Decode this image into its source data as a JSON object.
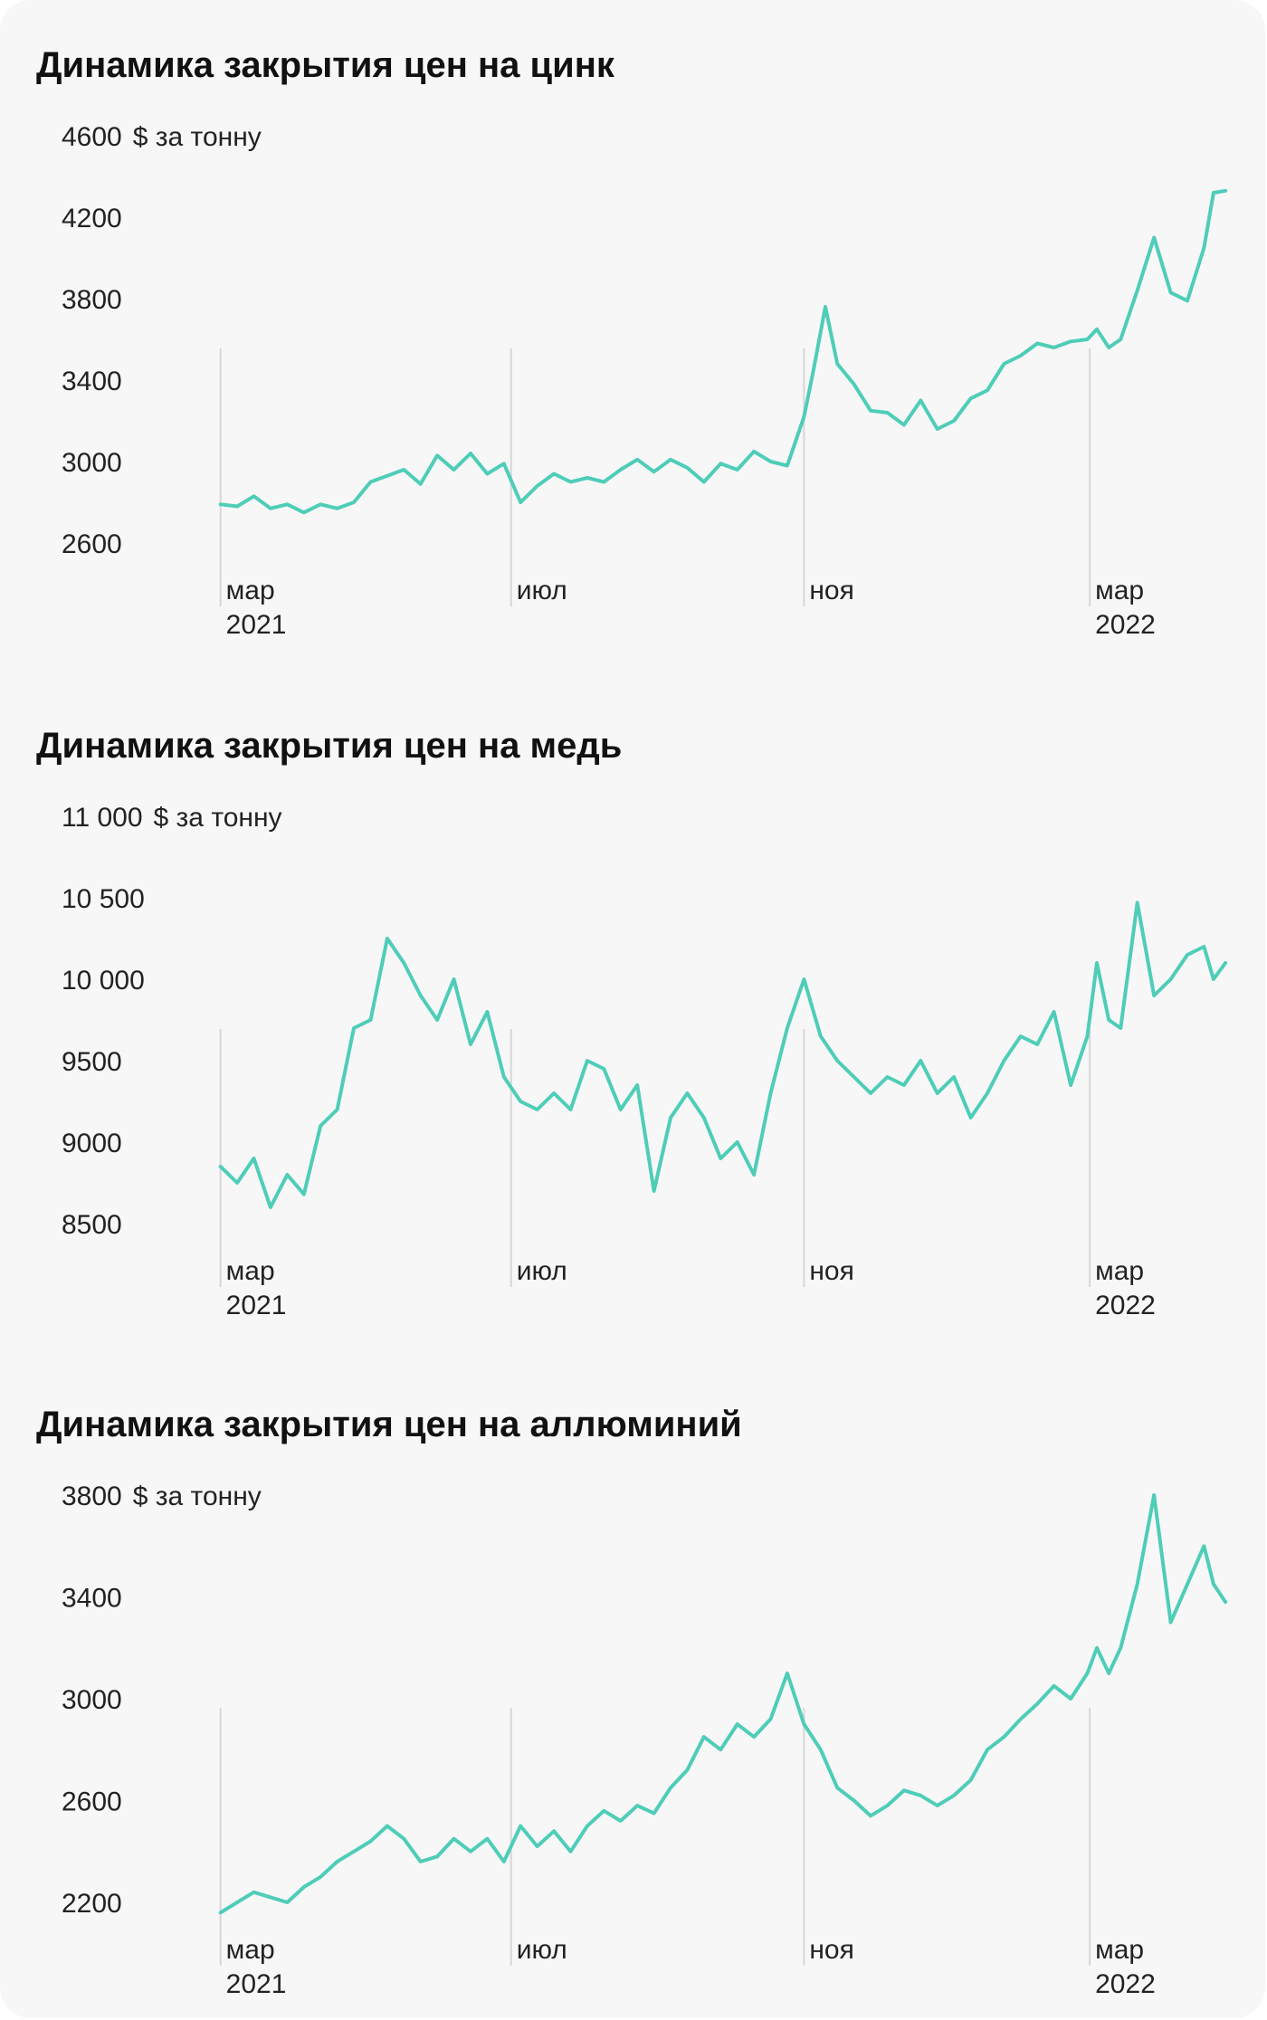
{
  "chart_data": [
    {
      "type": "line",
      "title": "Динамика закрытия цен на цинк",
      "unit": "$ за тонну",
      "yticks": [
        "4600",
        "4200",
        "3800",
        "3400",
        "3000",
        "2600"
      ],
      "ylim": [
        2600,
        4600
      ],
      "xlim": [
        "2021-02-01",
        "2022-04-30"
      ],
      "xticks": [
        {
          "date": "2021-03-01",
          "month": "мар",
          "year": "2021"
        },
        {
          "date": "2021-07-01",
          "month": "июл",
          "year": ""
        },
        {
          "date": "2021-11-01",
          "month": "ноя",
          "year": ""
        },
        {
          "date": "2022-03-01",
          "month": "мар",
          "year": "2022"
        }
      ],
      "grid": false,
      "series": [
        {
          "color": "#4ecdb8",
          "points": [
            [
              "2021-03-01",
              2790
            ],
            [
              "2021-03-08",
              2780
            ],
            [
              "2021-03-15",
              2830
            ],
            [
              "2021-03-22",
              2770
            ],
            [
              "2021-03-29",
              2790
            ],
            [
              "2021-04-05",
              2750
            ],
            [
              "2021-04-12",
              2790
            ],
            [
              "2021-04-19",
              2770
            ],
            [
              "2021-04-26",
              2800
            ],
            [
              "2021-05-03",
              2900
            ],
            [
              "2021-05-10",
              2930
            ],
            [
              "2021-05-17",
              2960
            ],
            [
              "2021-05-24",
              2890
            ],
            [
              "2021-05-31",
              3030
            ],
            [
              "2021-06-07",
              2960
            ],
            [
              "2021-06-14",
              3040
            ],
            [
              "2021-06-21",
              2940
            ],
            [
              "2021-06-28",
              2990
            ],
            [
              "2021-07-05",
              2800
            ],
            [
              "2021-07-12",
              2880
            ],
            [
              "2021-07-19",
              2940
            ],
            [
              "2021-07-26",
              2900
            ],
            [
              "2021-08-02",
              2920
            ],
            [
              "2021-08-09",
              2900
            ],
            [
              "2021-08-16",
              2960
            ],
            [
              "2021-08-23",
              3010
            ],
            [
              "2021-08-30",
              2950
            ],
            [
              "2021-09-06",
              3010
            ],
            [
              "2021-09-13",
              2970
            ],
            [
              "2021-09-20",
              2900
            ],
            [
              "2021-09-27",
              2990
            ],
            [
              "2021-10-04",
              2960
            ],
            [
              "2021-10-11",
              3050
            ],
            [
              "2021-10-18",
              3000
            ],
            [
              "2021-10-25",
              2980
            ],
            [
              "2021-11-01",
              3220
            ],
            [
              "2021-11-05",
              3450
            ],
            [
              "2021-11-10",
              3760
            ],
            [
              "2021-11-15",
              3480
            ],
            [
              "2021-11-22",
              3380
            ],
            [
              "2021-11-29",
              3250
            ],
            [
              "2021-12-06",
              3240
            ],
            [
              "2021-12-13",
              3180
            ],
            [
              "2021-12-20",
              3300
            ],
            [
              "2021-12-27",
              3160
            ],
            [
              "2022-01-03",
              3200
            ],
            [
              "2022-01-10",
              3310
            ],
            [
              "2022-01-17",
              3350
            ],
            [
              "2022-01-24",
              3480
            ],
            [
              "2022-01-31",
              3520
            ],
            [
              "2022-02-07",
              3580
            ],
            [
              "2022-02-14",
              3560
            ],
            [
              "2022-02-21",
              3590
            ],
            [
              "2022-02-28",
              3600
            ],
            [
              "2022-03-04",
              3650
            ],
            [
              "2022-03-09",
              3560
            ],
            [
              "2022-03-14",
              3600
            ],
            [
              "2022-03-21",
              3840
            ],
            [
              "2022-03-28",
              4100
            ],
            [
              "2022-04-04",
              3830
            ],
            [
              "2022-04-11",
              3790
            ],
            [
              "2022-04-18",
              4050
            ],
            [
              "2022-04-22",
              4320
            ],
            [
              "2022-04-27",
              4330
            ]
          ]
        }
      ]
    },
    {
      "type": "line",
      "title": "Динамика закрытия цен на медь",
      "unit": "$ за тонну",
      "yticks": [
        "11 000",
        "10 500",
        "10 000",
        "9500",
        "9000",
        "8500"
      ],
      "ylim": [
        8500,
        11000
      ],
      "xlim": [
        "2021-02-01",
        "2022-04-30"
      ],
      "xticks": [
        {
          "date": "2021-03-01",
          "month": "мар",
          "year": "2021"
        },
        {
          "date": "2021-07-01",
          "month": "июл",
          "year": ""
        },
        {
          "date": "2021-11-01",
          "month": "ноя",
          "year": ""
        },
        {
          "date": "2022-03-01",
          "month": "мар",
          "year": "2022"
        }
      ],
      "grid": false,
      "series": [
        {
          "color": "#4ecdb8",
          "points": [
            [
              "2021-03-01",
              8850
            ],
            [
              "2021-03-08",
              8750
            ],
            [
              "2021-03-15",
              8900
            ],
            [
              "2021-03-22",
              8600
            ],
            [
              "2021-03-29",
              8800
            ],
            [
              "2021-04-05",
              8680
            ],
            [
              "2021-04-12",
              9100
            ],
            [
              "2021-04-19",
              9200
            ],
            [
              "2021-04-26",
              9700
            ],
            [
              "2021-05-03",
              9750
            ],
            [
              "2021-05-10",
              10250
            ],
            [
              "2021-05-17",
              10100
            ],
            [
              "2021-05-24",
              9900
            ],
            [
              "2021-05-31",
              9750
            ],
            [
              "2021-06-07",
              10000
            ],
            [
              "2021-06-14",
              9600
            ],
            [
              "2021-06-21",
              9800
            ],
            [
              "2021-06-28",
              9400
            ],
            [
              "2021-07-05",
              9250
            ],
            [
              "2021-07-12",
              9200
            ],
            [
              "2021-07-19",
              9300
            ],
            [
              "2021-07-26",
              9200
            ],
            [
              "2021-08-02",
              9500
            ],
            [
              "2021-08-09",
              9450
            ],
            [
              "2021-08-16",
              9200
            ],
            [
              "2021-08-23",
              9350
            ],
            [
              "2021-08-30",
              8700
            ],
            [
              "2021-09-06",
              9150
            ],
            [
              "2021-09-13",
              9300
            ],
            [
              "2021-09-20",
              9150
            ],
            [
              "2021-09-27",
              8900
            ],
            [
              "2021-10-04",
              9000
            ],
            [
              "2021-10-11",
              8800
            ],
            [
              "2021-10-18",
              9300
            ],
            [
              "2021-10-25",
              9700
            ],
            [
              "2021-11-01",
              10000
            ],
            [
              "2021-11-08",
              9650
            ],
            [
              "2021-11-15",
              9500
            ],
            [
              "2021-11-22",
              9400
            ],
            [
              "2021-11-29",
              9300
            ],
            [
              "2021-12-06",
              9400
            ],
            [
              "2021-12-13",
              9350
            ],
            [
              "2021-12-20",
              9500
            ],
            [
              "2021-12-27",
              9300
            ],
            [
              "2022-01-03",
              9400
            ],
            [
              "2022-01-10",
              9150
            ],
            [
              "2022-01-17",
              9300
            ],
            [
              "2022-01-24",
              9500
            ],
            [
              "2022-01-31",
              9650
            ],
            [
              "2022-02-07",
              9600
            ],
            [
              "2022-02-14",
              9800
            ],
            [
              "2022-02-21",
              9350
            ],
            [
              "2022-02-28",
              9650
            ],
            [
              "2022-03-04",
              10100
            ],
            [
              "2022-03-09",
              9750
            ],
            [
              "2022-03-14",
              9700
            ],
            [
              "2022-03-21",
              10470
            ],
            [
              "2022-03-28",
              9900
            ],
            [
              "2022-04-04",
              10000
            ],
            [
              "2022-04-11",
              10150
            ],
            [
              "2022-04-18",
              10200
            ],
            [
              "2022-04-22",
              10000
            ],
            [
              "2022-04-27",
              10100
            ]
          ]
        }
      ]
    },
    {
      "type": "line",
      "title": "Динамика закрытия цен на аллюминий",
      "unit": "$ за тонну",
      "yticks": [
        "3800",
        "3400",
        "3000",
        "2600",
        "2200"
      ],
      "ylim": [
        2200,
        3800
      ],
      "xlim": [
        "2021-02-01",
        "2022-04-30"
      ],
      "xticks": [
        {
          "date": "2021-03-01",
          "month": "мар",
          "year": "2021"
        },
        {
          "date": "2021-07-01",
          "month": "июл",
          "year": ""
        },
        {
          "date": "2021-11-01",
          "month": "ноя",
          "year": ""
        },
        {
          "date": "2022-03-01",
          "month": "мар",
          "year": "2022"
        }
      ],
      "grid": false,
      "series": [
        {
          "color": "#4ecdb8",
          "points": [
            [
              "2021-03-01",
              2160
            ],
            [
              "2021-03-08",
              2200
            ],
            [
              "2021-03-15",
              2240
            ],
            [
              "2021-03-22",
              2220
            ],
            [
              "2021-03-29",
              2200
            ],
            [
              "2021-04-05",
              2260
            ],
            [
              "2021-04-12",
              2300
            ],
            [
              "2021-04-19",
              2360
            ],
            [
              "2021-04-26",
              2400
            ],
            [
              "2021-05-03",
              2440
            ],
            [
              "2021-05-10",
              2500
            ],
            [
              "2021-05-17",
              2450
            ],
            [
              "2021-05-24",
              2360
            ],
            [
              "2021-05-31",
              2380
            ],
            [
              "2021-06-07",
              2450
            ],
            [
              "2021-06-14",
              2400
            ],
            [
              "2021-06-21",
              2450
            ],
            [
              "2021-06-28",
              2360
            ],
            [
              "2021-07-05",
              2500
            ],
            [
              "2021-07-12",
              2420
            ],
            [
              "2021-07-19",
              2480
            ],
            [
              "2021-07-26",
              2400
            ],
            [
              "2021-08-02",
              2500
            ],
            [
              "2021-08-09",
              2560
            ],
            [
              "2021-08-16",
              2520
            ],
            [
              "2021-08-23",
              2580
            ],
            [
              "2021-08-30",
              2550
            ],
            [
              "2021-09-06",
              2650
            ],
            [
              "2021-09-13",
              2720
            ],
            [
              "2021-09-20",
              2850
            ],
            [
              "2021-09-27",
              2800
            ],
            [
              "2021-10-04",
              2900
            ],
            [
              "2021-10-11",
              2850
            ],
            [
              "2021-10-18",
              2920
            ],
            [
              "2021-10-25",
              3100
            ],
            [
              "2021-11-01",
              2900
            ],
            [
              "2021-11-08",
              2800
            ],
            [
              "2021-11-15",
              2650
            ],
            [
              "2021-11-22",
              2600
            ],
            [
              "2021-11-29",
              2540
            ],
            [
              "2021-12-06",
              2580
            ],
            [
              "2021-12-13",
              2640
            ],
            [
              "2021-12-20",
              2620
            ],
            [
              "2021-12-27",
              2580
            ],
            [
              "2022-01-03",
              2620
            ],
            [
              "2022-01-10",
              2680
            ],
            [
              "2022-01-17",
              2800
            ],
            [
              "2022-01-24",
              2850
            ],
            [
              "2022-01-31",
              2920
            ],
            [
              "2022-02-07",
              2980
            ],
            [
              "2022-02-14",
              3050
            ],
            [
              "2022-02-21",
              3000
            ],
            [
              "2022-02-28",
              3100
            ],
            [
              "2022-03-04",
              3200
            ],
            [
              "2022-03-09",
              3100
            ],
            [
              "2022-03-14",
              3200
            ],
            [
              "2022-03-21",
              3450
            ],
            [
              "2022-03-28",
              3800
            ],
            [
              "2022-04-04",
              3300
            ],
            [
              "2022-04-11",
              3450
            ],
            [
              "2022-04-18",
              3600
            ],
            [
              "2022-04-22",
              3450
            ],
            [
              "2022-04-27",
              3380
            ]
          ]
        }
      ]
    }
  ]
}
